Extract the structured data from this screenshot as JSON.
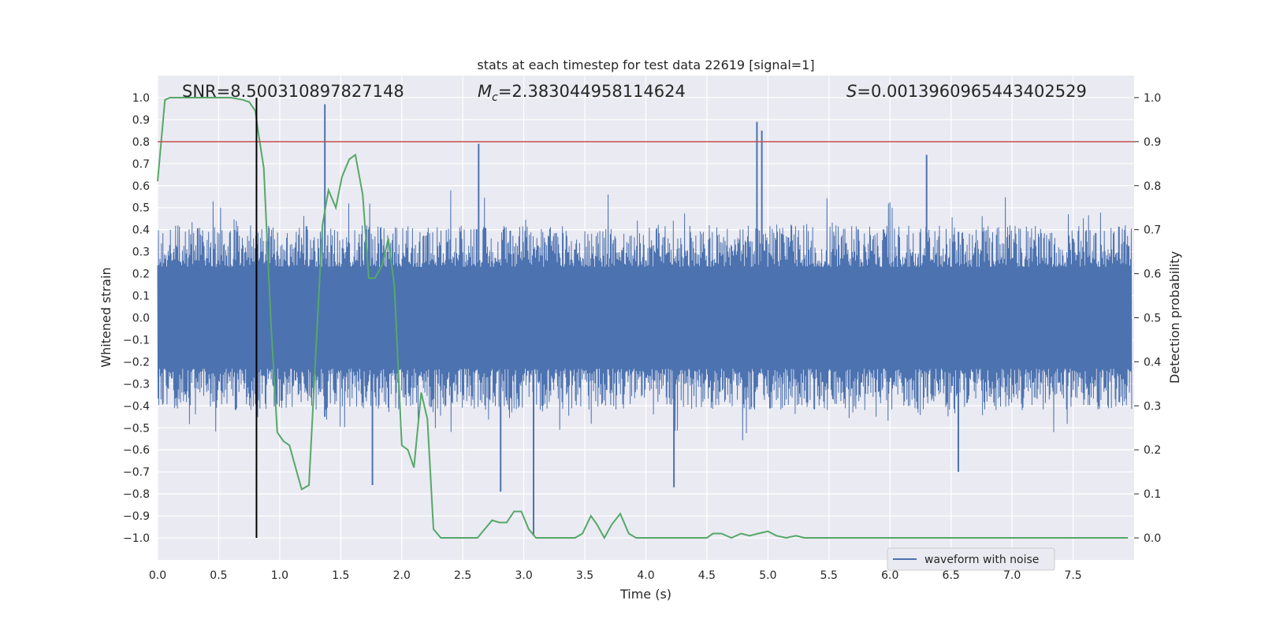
{
  "chart_data": {
    "type": "line",
    "title": "stats at each timestep for test data 22619 [signal=1]",
    "xlabel": "Time (s)",
    "ylabel_left": "Whitened strain",
    "ylabel_right": "Detection probability",
    "xlim": [
      0.0,
      8.0
    ],
    "ylim_left": [
      -1.1,
      1.1
    ],
    "ylim_right": [
      -0.05,
      1.05
    ],
    "xticks": [
      "0.0",
      "0.5",
      "1.0",
      "1.5",
      "2.0",
      "2.5",
      "3.0",
      "3.5",
      "4.0",
      "4.5",
      "5.0",
      "5.5",
      "6.0",
      "6.5",
      "7.0",
      "7.5"
    ],
    "yticks_left": [
      "1.0",
      "0.9",
      "0.8",
      "0.7",
      "0.6",
      "0.5",
      "0.4",
      "0.3",
      "0.2",
      "0.1",
      "0.0",
      "-0.1",
      "-0.2",
      "-0.3",
      "-0.4",
      "-0.5",
      "-0.6",
      "-0.7",
      "-0.8",
      "-0.9",
      "-1.0"
    ],
    "yticks_right": [
      "1.0",
      "0.9",
      "0.8",
      "0.7",
      "0.6",
      "0.5",
      "0.4",
      "0.3",
      "0.2",
      "0.1",
      "0.0"
    ],
    "grid": true,
    "annotations": {
      "snr": "SNR=8.500310897827148",
      "mc_symbol": "M",
      "mc_sub": "c",
      "mc_value": "=2.383044958114624",
      "s_symbol": "S",
      "s_value": "=0.0013960965443402529"
    },
    "threshold_line": {
      "axis": "right",
      "y": 0.9,
      "color": "#c44e52"
    },
    "merger_time_line": {
      "x": 0.81,
      "ymin": -1.0,
      "ymax": 1.0,
      "color": "#000000"
    },
    "legend": {
      "placement": "bottom-right",
      "entries": [
        "waveform with noise"
      ]
    },
    "series": [
      {
        "name": "waveform with noise",
        "axis": "left",
        "color": "#4c72b0",
        "envelope_typical": 0.42,
        "peaks": [
          {
            "x": 1.37,
            "y": 0.97
          },
          {
            "x": 1.37,
            "y": -0.45
          },
          {
            "x": 2.63,
            "y": 0.79
          },
          {
            "x": 4.91,
            "y": 0.89
          },
          {
            "x": 4.95,
            "y": 0.85
          },
          {
            "x": 3.08,
            "y": -0.99
          },
          {
            "x": 2.81,
            "y": -0.79
          },
          {
            "x": 4.23,
            "y": -0.77
          },
          {
            "x": 1.76,
            "y": -0.76
          },
          {
            "x": 6.56,
            "y": -0.7
          },
          {
            "x": 6.3,
            "y": 0.74
          }
        ]
      },
      {
        "name": "",
        "axis": "right",
        "color": "#55a868",
        "x": [
          0.0,
          0.06,
          0.1,
          0.2,
          0.3,
          0.4,
          0.5,
          0.6,
          0.7,
          0.75,
          0.8,
          0.82,
          0.87,
          0.93,
          0.98,
          1.03,
          1.08,
          1.13,
          1.18,
          1.24,
          1.29,
          1.35,
          1.4,
          1.46,
          1.51,
          1.57,
          1.62,
          1.68,
          1.73,
          1.78,
          1.84,
          1.89,
          1.94,
          2.0,
          2.05,
          2.1,
          2.16,
          2.21,
          2.26,
          2.32,
          2.38,
          2.45,
          2.5,
          2.56,
          2.62,
          2.68,
          2.74,
          2.8,
          2.86,
          2.92,
          2.98,
          3.04,
          3.1,
          3.16,
          3.22,
          3.28,
          3.35,
          3.42,
          3.48,
          3.55,
          3.6,
          3.66,
          3.72,
          3.79,
          3.86,
          3.92,
          4.0,
          4.2,
          4.4,
          4.5,
          4.55,
          4.62,
          4.7,
          4.78,
          4.85,
          4.92,
          5.0,
          5.07,
          5.15,
          5.23,
          5.3,
          5.4,
          5.6,
          6.0,
          6.2,
          6.4,
          7.0,
          7.6,
          7.95
        ],
        "y": [
          0.81,
          0.995,
          1.0,
          1.0,
          1.0,
          1.0,
          1.0,
          1.0,
          0.995,
          0.99,
          0.97,
          0.93,
          0.84,
          0.48,
          0.24,
          0.22,
          0.21,
          0.16,
          0.11,
          0.12,
          0.39,
          0.71,
          0.79,
          0.75,
          0.82,
          0.86,
          0.87,
          0.78,
          0.59,
          0.59,
          0.62,
          0.68,
          0.57,
          0.21,
          0.2,
          0.16,
          0.33,
          0.27,
          0.02,
          0.0,
          0.0,
          0.0,
          0.0,
          0.0,
          0.0,
          0.02,
          0.04,
          0.035,
          0.035,
          0.06,
          0.06,
          0.02,
          0.0,
          0.0,
          0.0,
          0.0,
          0.0,
          0.0,
          0.01,
          0.05,
          0.03,
          0.0,
          0.03,
          0.055,
          0.01,
          0.0,
          0.0,
          0.0,
          0.0,
          0.0,
          0.01,
          0.01,
          0.0,
          0.01,
          0.005,
          0.01,
          0.015,
          0.005,
          0.0,
          0.005,
          0.0,
          0.0,
          0.0,
          0.0,
          0.0,
          0.0,
          0.0,
          0.0,
          0.0
        ]
      }
    ]
  }
}
